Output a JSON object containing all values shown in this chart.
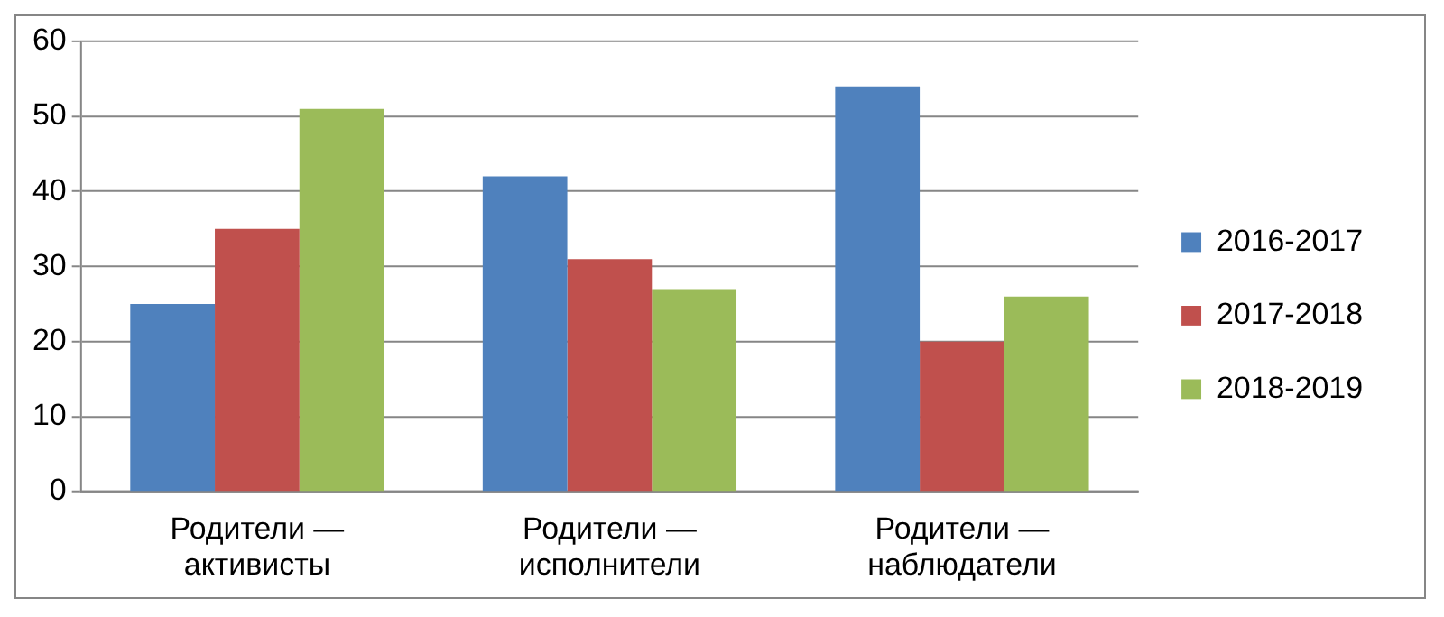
{
  "chart_data": {
    "type": "bar",
    "categories": [
      "Родители — активисты",
      "Родители — исполнители",
      "Родители — наблюдатели"
    ],
    "series": [
      {
        "name": "2016-2017",
        "color": "#4f81bd",
        "values": [
          25,
          42,
          54
        ]
      },
      {
        "name": "2017-2018",
        "color": "#c0504d",
        "values": [
          35,
          31,
          20
        ]
      },
      {
        "name": "2018-2019",
        "color": "#9bbb59",
        "values": [
          51,
          27,
          26
        ]
      }
    ],
    "ylim": [
      0,
      60
    ],
    "yticks": [
      0,
      10,
      20,
      30,
      40,
      50,
      60
    ],
    "grid": "y",
    "legend": "right"
  }
}
